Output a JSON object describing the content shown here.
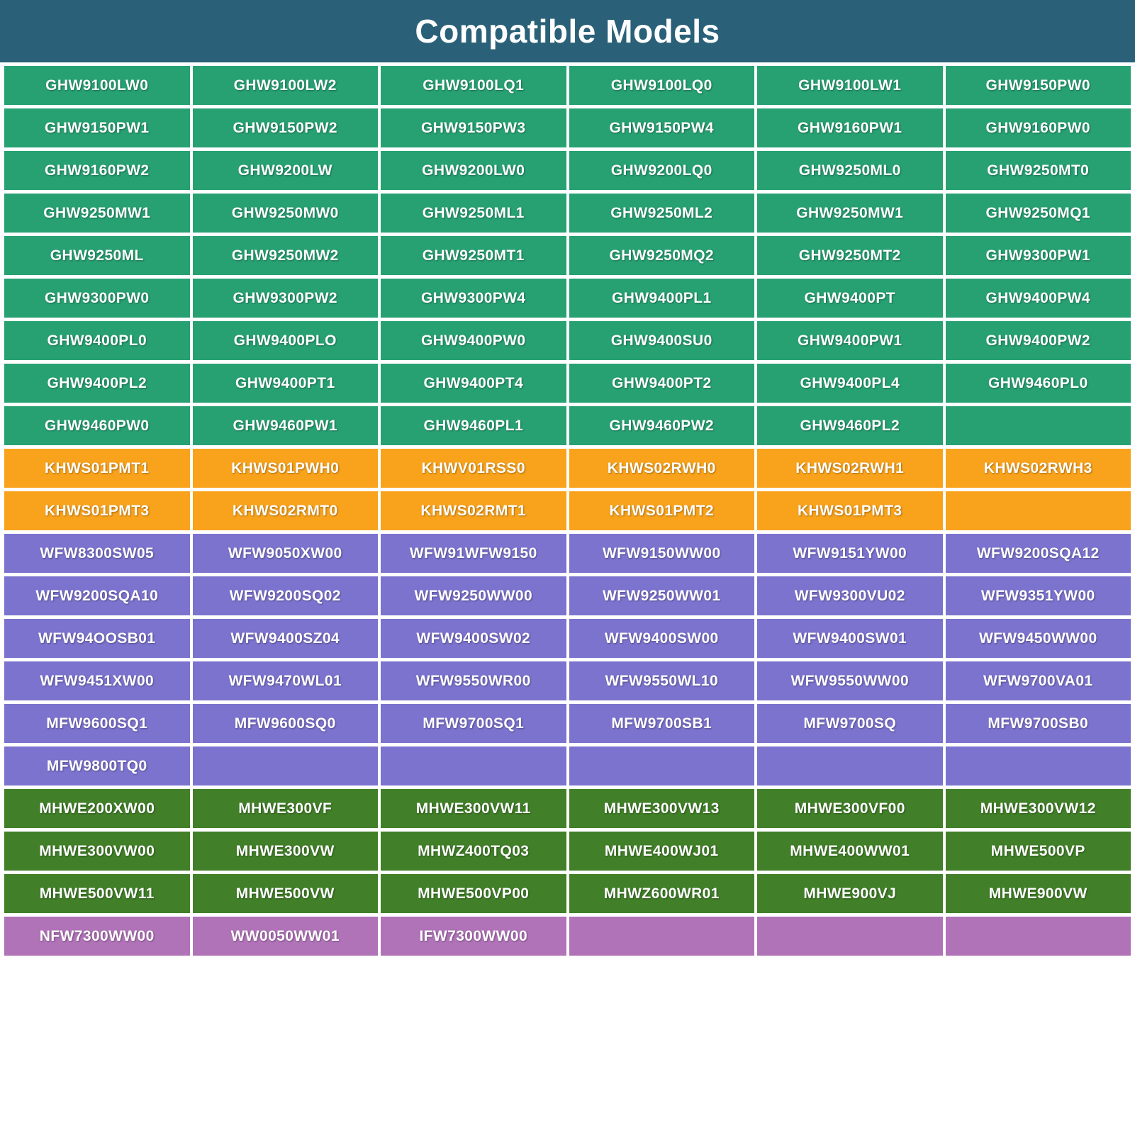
{
  "header": {
    "title": "Compatible Models",
    "bg_color": "#2A6178",
    "text_color": "#FFFFFF"
  },
  "table": {
    "columns": 6,
    "groups": [
      {
        "name": "ghw-models",
        "color": "#27A172",
        "rows": [
          [
            "GHW9100LW0",
            "GHW9100LW2",
            "GHW9100LQ1",
            "GHW9100LQ0",
            "GHW9100LW1",
            "GHW9150PW0"
          ],
          [
            "GHW9150PW1",
            "GHW9150PW2",
            "GHW9150PW3",
            "GHW9150PW4",
            "GHW9160PW1",
            "GHW9160PW0"
          ],
          [
            "GHW9160PW2",
            "GHW9200LW",
            "GHW9200LW0",
            "GHW9200LQ0",
            "GHW9250ML0",
            "GHW9250MT0"
          ],
          [
            "GHW9250MW1",
            "GHW9250MW0",
            "GHW9250ML1",
            "GHW9250ML2",
            "GHW9250MW1",
            "GHW9250MQ1"
          ],
          [
            "GHW9250ML",
            "GHW9250MW2",
            "GHW9250MT1",
            "GHW9250MQ2",
            "GHW9250MT2",
            "GHW9300PW1"
          ],
          [
            "GHW9300PW0",
            "GHW9300PW2",
            "GHW9300PW4",
            "GHW9400PL1",
            "GHW9400PT",
            "GHW9400PW4"
          ],
          [
            "GHW9400PL0",
            "GHW9400PLO",
            "GHW9400PW0",
            "GHW9400SU0",
            "GHW9400PW1",
            "GHW9400PW2"
          ],
          [
            "GHW9400PL2",
            "GHW9400PT1",
            "GHW9400PT4",
            "GHW9400PT2",
            "GHW9400PL4",
            "GHW9460PL0"
          ],
          [
            "GHW9460PW0",
            "GHW9460PW1",
            "GHW9460PL1",
            "GHW9460PW2",
            "GHW9460PL2",
            ""
          ]
        ]
      },
      {
        "name": "khw-models",
        "color": "#F9A21B",
        "rows": [
          [
            "KHWS01PMT1",
            "KHWS01PWH0",
            "KHWV01RSS0",
            "KHWS02RWH0",
            "KHWS02RWH1",
            "KHWS02RWH3"
          ],
          [
            "KHWS01PMT3",
            "KHWS02RMT0",
            "KHWS02RMT1",
            "KHWS01PMT2",
            "KHWS01PMT3",
            ""
          ]
        ]
      },
      {
        "name": "wfw-mfw-models",
        "color": "#7B73CE",
        "rows": [
          [
            "WFW8300SW05",
            "WFW9050XW00",
            "WFW91WFW9150",
            "WFW9150WW00",
            "WFW9151YW00",
            "WFW9200SQA12"
          ],
          [
            "WFW9200SQA10",
            "WFW9200SQ02",
            "WFW9250WW00",
            "WFW9250WW01",
            "WFW9300VU02",
            "WFW9351YW00"
          ],
          [
            "WFW94OOSB01",
            "WFW9400SZ04",
            "WFW9400SW02",
            "WFW9400SW00",
            "WFW9400SW01",
            "WFW9450WW00"
          ],
          [
            "WFW9451XW00",
            "WFW9470WL01",
            "WFW9550WR00",
            "WFW9550WL10",
            "WFW9550WW00",
            "WFW9700VA01"
          ],
          [
            "MFW9600SQ1",
            "MFW9600SQ0",
            "MFW9700SQ1",
            "MFW9700SB1",
            "MFW9700SQ",
            "MFW9700SB0"
          ],
          [
            "MFW9800TQ0",
            "",
            "",
            "",
            "",
            ""
          ]
        ]
      },
      {
        "name": "mhw-models",
        "color": "#417F28",
        "rows": [
          [
            "MHWE200XW00",
            "MHWE300VF",
            "MHWE300VW11",
            "MHWE300VW13",
            "MHWE300VF00",
            "MHWE300VW12"
          ],
          [
            "MHWE300VW00",
            "MHWE300VW",
            "MHWZ400TQ03",
            "MHWE400WJ01",
            "MHWE400WW01",
            "MHWE500VP"
          ],
          [
            "MHWE500VW11",
            "MHWE500VW",
            "MHWE500VP00",
            "MHWZ600WR01",
            "MHWE900VJ",
            "MHWE900VW"
          ]
        ]
      },
      {
        "name": "nfw-models",
        "color": "#B073B8",
        "rows": [
          [
            "NFW7300WW00",
            "WW0050WW01",
            "IFW7300WW00",
            "",
            "",
            ""
          ]
        ]
      }
    ]
  }
}
